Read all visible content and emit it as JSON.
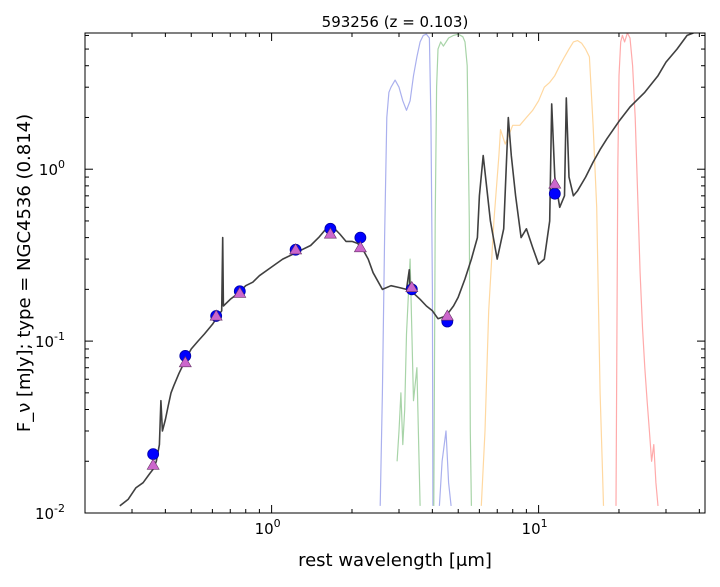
{
  "chart_data": {
    "type": "line",
    "title": "593256 (z = 0.103)",
    "xlabel": "rest wavelength [μm]",
    "ylabel": "F_ν [mJy];  type = NGC4536 (0.814)",
    "xscale": "log",
    "yscale": "log",
    "xlim": [
      0.2,
      42
    ],
    "ylim": [
      0.01,
      6.2
    ],
    "x_ticks": [
      {
        "value": 1,
        "label": "10^0"
      },
      {
        "value": 10,
        "label": "10^1"
      }
    ],
    "y_ticks": [
      {
        "value": 0.01,
        "label": "10^-2"
      },
      {
        "value": 0.1,
        "label": "10^-1"
      },
      {
        "value": 1,
        "label": "10^0"
      }
    ],
    "grid": false,
    "colors": {
      "template": "#404040",
      "observed": "#0000ff",
      "model": "#cc66cc",
      "filter_blue": "#aab0ee",
      "filter_green": "#a8d4a8",
      "filter_orange": "#ffd8a0",
      "filter_red": "#ffaaaa"
    },
    "series": [
      {
        "kind": "observed",
        "marker": "circle",
        "x": [
          0.36,
          0.475,
          0.62,
          0.76,
          1.23,
          1.66,
          2.15,
          3.35,
          4.55,
          11.5
        ],
        "y": [
          0.022,
          0.082,
          0.14,
          0.195,
          0.34,
          0.45,
          0.4,
          0.2,
          0.13,
          0.72
        ]
      },
      {
        "kind": "model",
        "marker": "triangle",
        "x": [
          0.36,
          0.475,
          0.62,
          0.76,
          1.23,
          1.66,
          2.15,
          3.35,
          4.55,
          11.5
        ],
        "y": [
          0.019,
          0.075,
          0.14,
          0.19,
          0.34,
          0.42,
          0.35,
          0.205,
          0.14,
          0.82
        ]
      },
      {
        "kind": "template",
        "x": [
          0.27,
          0.29,
          0.31,
          0.33,
          0.35,
          0.36,
          0.37,
          0.38,
          0.385,
          0.39,
          0.4,
          0.41,
          0.42,
          0.43,
          0.45,
          0.48,
          0.5,
          0.53,
          0.56,
          0.6,
          0.63,
          0.65,
          0.656,
          0.66,
          0.7,
          0.75,
          0.8,
          0.85,
          0.9,
          1.0,
          1.1,
          1.2,
          1.3,
          1.4,
          1.5,
          1.6,
          1.7,
          1.8,
          1.9,
          2.0,
          2.1,
          2.2,
          2.3,
          2.4,
          2.6,
          2.8,
          3.0,
          3.2,
          3.28,
          3.3,
          3.4,
          3.6,
          3.8,
          4.0,
          4.2,
          4.5,
          4.8,
          5.0,
          5.3,
          5.6,
          5.9,
          6.0,
          6.2,
          6.6,
          7.0,
          7.4,
          7.7,
          7.9,
          8.2,
          8.6,
          9.0,
          9.5,
          10.0,
          10.5,
          11.0,
          11.2,
          11.5,
          12.0,
          12.5,
          12.7,
          13.0,
          13.5,
          14.0,
          15.0,
          16.0,
          17.0,
          18.0,
          20.0,
          22.0,
          25.0,
          28.0,
          30.0,
          33.0,
          36.0,
          38.0
        ],
        "y": [
          0.011,
          0.012,
          0.014,
          0.015,
          0.017,
          0.018,
          0.02,
          0.025,
          0.045,
          0.03,
          0.035,
          0.042,
          0.05,
          0.055,
          0.065,
          0.08,
          0.09,
          0.1,
          0.11,
          0.125,
          0.14,
          0.15,
          0.4,
          0.16,
          0.175,
          0.19,
          0.21,
          0.22,
          0.24,
          0.27,
          0.3,
          0.32,
          0.34,
          0.36,
          0.4,
          0.45,
          0.46,
          0.42,
          0.38,
          0.38,
          0.37,
          0.34,
          0.3,
          0.25,
          0.2,
          0.21,
          0.205,
          0.2,
          0.26,
          0.2,
          0.19,
          0.175,
          0.16,
          0.15,
          0.135,
          0.14,
          0.16,
          0.18,
          0.23,
          0.3,
          0.4,
          0.7,
          1.2,
          0.5,
          0.3,
          0.45,
          2.0,
          1.2,
          0.7,
          0.4,
          0.45,
          0.35,
          0.28,
          0.3,
          0.5,
          2.4,
          0.9,
          0.6,
          0.7,
          2.6,
          0.9,
          0.7,
          0.75,
          0.9,
          1.1,
          1.3,
          1.5,
          1.9,
          2.3,
          2.8,
          3.5,
          4.2,
          5.0,
          6.0,
          6.2
        ]
      }
    ],
    "filter_curves": [
      {
        "color": "blue",
        "x": [
          2.55,
          2.6,
          2.65,
          2.7,
          2.75,
          2.8,
          2.9,
          3.0,
          3.1,
          3.2,
          3.3,
          3.4,
          3.5,
          3.6,
          3.7,
          3.8,
          3.9,
          3.95,
          4.0,
          4.02
        ],
        "y": [
          0.011,
          0.05,
          0.4,
          2.0,
          2.8,
          3.0,
          3.3,
          3.0,
          2.5,
          2.2,
          2.5,
          3.5,
          4.5,
          5.5,
          6.0,
          6.1,
          5.8,
          2.0,
          0.2,
          0.011
        ]
      },
      {
        "color": "blue",
        "x": [
          4.25,
          4.35,
          4.5,
          4.6,
          4.7
        ],
        "y": [
          0.011,
          0.02,
          0.03,
          0.015,
          0.011
        ]
      },
      {
        "color": "green",
        "x": [
          2.95,
          3.0,
          3.05,
          3.1,
          3.15,
          3.2,
          3.3,
          3.4,
          3.5,
          3.6
        ],
        "y": [
          0.02,
          0.03,
          0.05,
          0.025,
          0.04,
          0.11,
          0.3,
          0.045,
          0.07,
          0.011
        ]
      },
      {
        "color": "green",
        "x": [
          4.05,
          4.1,
          4.15,
          4.2,
          4.3,
          4.4,
          4.6,
          4.8,
          5.0,
          5.2,
          5.3,
          5.4,
          5.5,
          5.55,
          5.6
        ],
        "y": [
          0.011,
          0.5,
          3.0,
          5.0,
          5.5,
          5.2,
          5.8,
          6.0,
          6.1,
          5.9,
          5.5,
          4.0,
          0.5,
          0.03,
          0.011
        ]
      },
      {
        "color": "orange",
        "x": [
          6.1,
          6.3,
          6.5,
          6.8,
          7.1,
          7.2,
          7.5,
          8.0,
          8.5,
          9.0,
          9.5,
          10.0,
          10.5,
          11.0,
          11.5,
          12.0,
          12.5,
          13.0,
          13.5,
          14.0,
          14.5,
          15.0,
          15.5,
          16.0,
          16.5,
          17.0,
          17.3,
          17.5
        ],
        "y": [
          0.011,
          0.03,
          0.15,
          0.5,
          1.2,
          1.7,
          1.4,
          1.8,
          1.8,
          2.0,
          2.2,
          2.5,
          3.0,
          3.2,
          3.5,
          4.0,
          4.5,
          5.0,
          5.5,
          5.6,
          5.4,
          5.0,
          4.5,
          1.8,
          0.6,
          0.05,
          0.02,
          0.011
        ]
      },
      {
        "color": "red",
        "x": [
          19.5,
          19.8,
          20.0,
          20.3,
          20.6,
          21.0,
          21.5,
          22.0,
          22.5,
          23.0,
          23.5,
          24.0,
          24.5,
          25.0,
          25.5,
          26.0,
          26.5,
          27.0,
          27.5,
          28.0
        ],
        "y": [
          0.011,
          1.0,
          3.5,
          5.5,
          6.0,
          5.5,
          6.2,
          5.8,
          4.0,
          2.0,
          0.7,
          0.25,
          0.12,
          0.07,
          0.045,
          0.03,
          0.02,
          0.025,
          0.015,
          0.011
        ]
      }
    ]
  }
}
